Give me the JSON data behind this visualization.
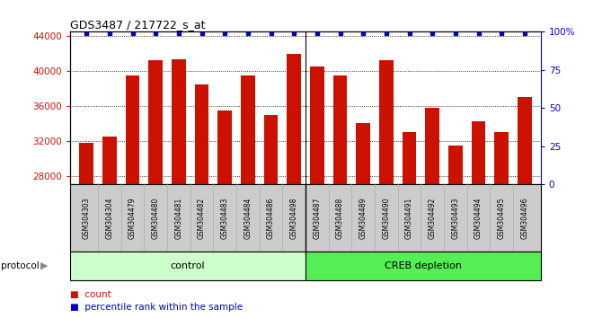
{
  "title": "GDS3487 / 217722_s_at",
  "categories": [
    "GSM304303",
    "GSM304304",
    "GSM304479",
    "GSM304480",
    "GSM304481",
    "GSM304482",
    "GSM304483",
    "GSM304484",
    "GSM304486",
    "GSM304498",
    "GSM304487",
    "GSM304488",
    "GSM304489",
    "GSM304490",
    "GSM304491",
    "GSM304492",
    "GSM304493",
    "GSM304494",
    "GSM304495",
    "GSM304496"
  ],
  "values": [
    31800,
    32500,
    39500,
    41200,
    41400,
    38500,
    35500,
    39500,
    35000,
    42000,
    40500,
    39500,
    34000,
    41200,
    33000,
    35800,
    31500,
    34200,
    33000,
    37000
  ],
  "bar_color": "#cc1100",
  "percentile_color": "#0000cc",
  "ylim_left": [
    27000,
    44500
  ],
  "ylim_right": [
    0,
    100
  ],
  "yticks_left": [
    28000,
    32000,
    36000,
    40000,
    44000
  ],
  "ytick_labels_left": [
    "28000",
    "32000",
    "36000",
    "40000",
    "44000"
  ],
  "yticks_right": [
    0,
    25,
    50,
    75,
    100
  ],
  "ytick_labels_right": [
    "0",
    "25",
    "50",
    "75",
    "100%"
  ],
  "control_count": 10,
  "control_label": "control",
  "creb_label": "CREB depletion",
  "protocol_label": "protocol",
  "legend_count_label": "count",
  "legend_percentile_label": "percentile rank within the sample",
  "control_bg": "#ccffcc",
  "creb_bg": "#55ee55",
  "xlabel_bg": "#cccccc",
  "bg_color": "#ffffff",
  "fig_width": 6.8,
  "fig_height": 3.54,
  "dpi": 100
}
